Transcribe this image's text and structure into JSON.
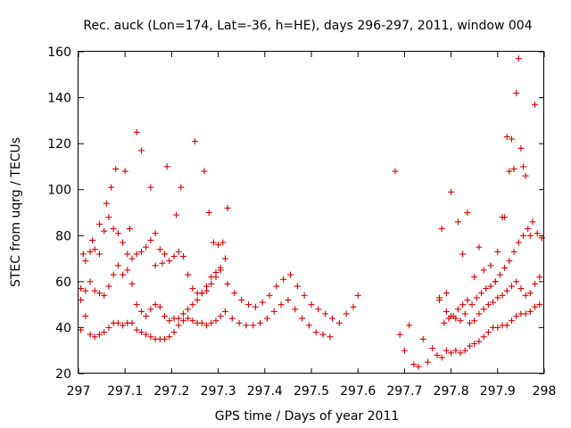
{
  "chart_data": {
    "type": "scatter",
    "title": "Rec. auck (Lon=174, Lat=-36, h=HE), days 296-297, 2011, window 004",
    "xlabel": "GPS time / Days of year 2011",
    "ylabel": "STEC from uqrg / TECUs",
    "xlim": [
      297,
      298
    ],
    "ylim": [
      20,
      160
    ],
    "xticks": [
      "297",
      "297.1",
      "297.2",
      "297.3",
      "297.4",
      "297.5",
      "297.6",
      "297.7",
      "297.8",
      "297.9",
      "298"
    ],
    "yticks": [
      "20",
      "40",
      "60",
      "80",
      "100",
      "120",
      "140",
      "160"
    ],
    "marker": "+",
    "color": "#d40000",
    "grid": false,
    "series": [
      {
        "x": [
          297.005,
          297.015,
          297.025,
          297.035,
          297.045,
          297.055,
          297.065,
          297.075,
          297.085,
          297.095,
          297.105,
          297.115,
          297.125,
          297.135,
          297.145,
          297.155,
          297.165,
          297.175,
          297.185,
          297.195,
          297.205,
          297.215,
          297.225,
          297.235,
          297.245,
          297.255,
          297.265,
          297.275,
          297.285,
          297.295,
          297.305,
          297.315,
          297.33,
          297.345,
          297.36,
          297.375,
          297.39,
          297.405,
          297.42,
          297.435,
          297.45,
          297.465,
          297.48,
          297.495,
          297.51,
          297.525,
          297.54,
          297.005,
          297.015,
          297.025,
          297.035,
          297.045,
          297.055,
          297.065,
          297.075,
          297.085,
          297.095,
          297.105,
          297.115,
          297.125,
          297.135,
          297.145,
          297.155,
          297.165,
          297.175,
          297.185,
          297.195,
          297.205,
          297.215,
          297.225,
          297.235,
          297.245,
          297.255,
          297.265,
          297.275,
          297.285,
          297.295,
          297.305,
          297.32,
          297.335,
          297.35,
          297.365,
          297.38,
          297.395,
          297.41,
          297.425,
          297.44,
          297.455,
          297.47,
          297.485,
          297.5,
          297.515,
          297.53,
          297.545,
          297.56,
          297.575,
          297.59,
          297.6,
          297.005,
          297.015,
          297.025,
          297.035,
          297.045,
          297.055,
          297.065,
          297.075,
          297.085,
          297.095,
          297.105,
          297.115,
          297.125,
          297.135,
          297.145,
          297.155,
          297.165,
          297.175,
          297.185,
          297.195,
          297.205,
          297.215,
          297.225,
          297.235,
          297.245,
          297.255,
          297.265,
          297.275,
          297.285,
          297.295,
          297.305,
          297.315,
          297.01,
          297.03,
          297.045,
          297.06,
          297.07,
          297.08,
          297.1,
          297.11,
          297.125,
          297.135,
          297.155,
          297.165,
          297.18,
          297.19,
          297.21,
          297.22,
          297.25,
          297.27,
          297.28,
          297.29,
          297.3,
          297.31,
          297.32,
          297.68,
          297.69,
          297.7,
          297.71,
          297.72,
          297.73,
          297.74,
          297.75,
          297.76,
          297.77,
          297.78,
          297.79,
          297.8,
          297.81,
          297.82,
          297.83,
          297.84,
          297.85,
          297.86,
          297.87,
          297.88,
          297.89,
          297.9,
          297.91,
          297.92,
          297.93,
          297.94,
          297.95,
          297.96,
          297.97,
          297.98,
          297.99,
          297.775,
          297.785,
          297.795,
          297.805,
          297.815,
          297.825,
          297.835,
          297.845,
          297.855,
          297.865,
          297.875,
          297.885,
          297.895,
          297.905,
          297.915,
          297.925,
          297.935,
          297.945,
          297.955,
          297.965,
          297.975,
          297.985,
          297.995,
          297.78,
          297.79,
          297.8,
          297.81,
          297.82,
          297.83,
          297.84,
          297.85,
          297.86,
          297.87,
          297.88,
          297.89,
          297.9,
          297.91,
          297.92,
          297.93,
          297.94,
          297.95,
          297.96,
          297.97,
          297.98,
          297.99,
          297.775,
          297.79,
          297.8,
          297.815,
          297.825,
          297.835,
          297.85,
          297.86,
          297.87,
          297.885,
          297.895,
          297.9,
          297.91,
          297.915,
          297.92,
          297.925,
          297.93,
          297.935,
          297.94,
          297.945,
          297.95,
          297.955,
          297.96,
          297.97,
          297.98
        ],
        "y": [
          39,
          45,
          37,
          36,
          37,
          38,
          40,
          42,
          42,
          41,
          42,
          42,
          39,
          38,
          37,
          36,
          35,
          35,
          35,
          36,
          38,
          41,
          43,
          44,
          43,
          42,
          42,
          41,
          42,
          43,
          45,
          47,
          44,
          42,
          41,
          41,
          42,
          44,
          47,
          50,
          52,
          48,
          44,
          41,
          38,
          37,
          36,
          52,
          56,
          60,
          56,
          55,
          54,
          58,
          63,
          67,
          63,
          65,
          59,
          50,
          47,
          45,
          48,
          50,
          49,
          45,
          43,
          44,
          44,
          46,
          48,
          50,
          52,
          55,
          58,
          62,
          64,
          65,
          59,
          55,
          52,
          50,
          49,
          51,
          54,
          58,
          61,
          63,
          58,
          54,
          50,
          48,
          46,
          44,
          42,
          46,
          49,
          54,
          57,
          69,
          73,
          74,
          72,
          82,
          88,
          83,
          81,
          77,
          72,
          70,
          72,
          73,
          75,
          78,
          67,
          74,
          72,
          69,
          71,
          73,
          71,
          63,
          57,
          55,
          55,
          56,
          59,
          62,
          66,
          70,
          72,
          78,
          85,
          94,
          101,
          109,
          108,
          83,
          125,
          117,
          101,
          81,
          68,
          110,
          89,
          101,
          121,
          108,
          90,
          77,
          76,
          77,
          92,
          108,
          37,
          30,
          41,
          24,
          23,
          35,
          25,
          31,
          28,
          27,
          30,
          29,
          30,
          29,
          30,
          32,
          33,
          34,
          36,
          38,
          40,
          40,
          41,
          41,
          43,
          45,
          46,
          46,
          47,
          49,
          50,
          52,
          42,
          44,
          45,
          48,
          50,
          52,
          50,
          53,
          55,
          57,
          58,
          60,
          63,
          66,
          69,
          73,
          77,
          80,
          83,
          86,
          81,
          79,
          83,
          47,
          45,
          44,
          43,
          46,
          42,
          43,
          46,
          48,
          50,
          51,
          53,
          54,
          56,
          58,
          60,
          57,
          54,
          55,
          59,
          62,
          53,
          55,
          99,
          86,
          72,
          90,
          62,
          75,
          65,
          67,
          60,
          73,
          88,
          88,
          123,
          108,
          122,
          109,
          142,
          157,
          118,
          110,
          106,
          80,
          137
        ]
      }
    ]
  }
}
